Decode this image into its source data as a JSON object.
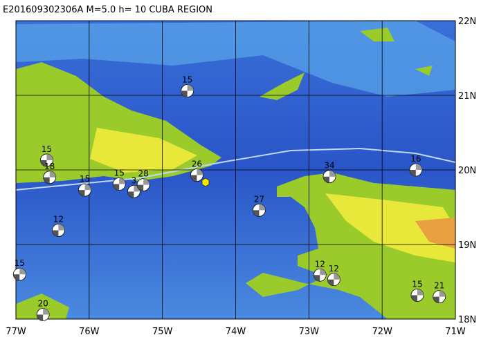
{
  "map": {
    "title": "E201609302306A  M=5.0  h= 10  CUBA REGION",
    "lons": [
      {
        "value": -77,
        "label": "77W"
      },
      {
        "value": -76,
        "label": "76W"
      },
      {
        "value": -75,
        "label": "75W"
      },
      {
        "value": -74,
        "label": "74W"
      },
      {
        "value": -73,
        "label": "73W"
      },
      {
        "value": -72,
        "label": "72W"
      },
      {
        "value": -71,
        "label": "71W"
      }
    ],
    "lats": [
      {
        "value": 22,
        "label": "22N"
      },
      {
        "value": 21,
        "label": "21N"
      },
      {
        "value": 20,
        "label": "20N"
      },
      {
        "value": 19,
        "label": "19N"
      },
      {
        "value": 18,
        "label": "18N"
      }
    ],
    "events": [
      {
        "lon": -74.66,
        "lat": 21.06,
        "label": 15
      },
      {
        "lon": -76.58,
        "lat": 20.13,
        "label": 15
      },
      {
        "lon": -76.54,
        "lat": 19.9,
        "label": 18
      },
      {
        "lon": -76.06,
        "lat": 19.73,
        "label": 15
      },
      {
        "lon": -75.59,
        "lat": 19.81,
        "label": 15
      },
      {
        "lon": -75.39,
        "lat": 19.71,
        "label": 3
      },
      {
        "lon": -75.26,
        "lat": 19.8,
        "label": 28
      },
      {
        "lon": -74.53,
        "lat": 19.93,
        "label": 26
      },
      {
        "lon": -73.68,
        "lat": 19.46,
        "label": 27
      },
      {
        "lon": -72.72,
        "lat": 19.91,
        "label": 34
      },
      {
        "lon": -71.54,
        "lat": 20.0,
        "label": 16
      },
      {
        "lon": -76.42,
        "lat": 19.19,
        "label": 12
      },
      {
        "lon": -76.95,
        "lat": 18.6,
        "label": 15
      },
      {
        "lon": -76.63,
        "lat": 18.06,
        "label": 20
      },
      {
        "lon": -72.85,
        "lat": 18.59,
        "label": 12
      },
      {
        "lon": -72.66,
        "lat": 18.53,
        "label": 12
      },
      {
        "lon": -71.52,
        "lat": 18.32,
        "label": 15
      },
      {
        "lon": -71.22,
        "lat": 18.3,
        "label": 21
      }
    ]
  }
}
